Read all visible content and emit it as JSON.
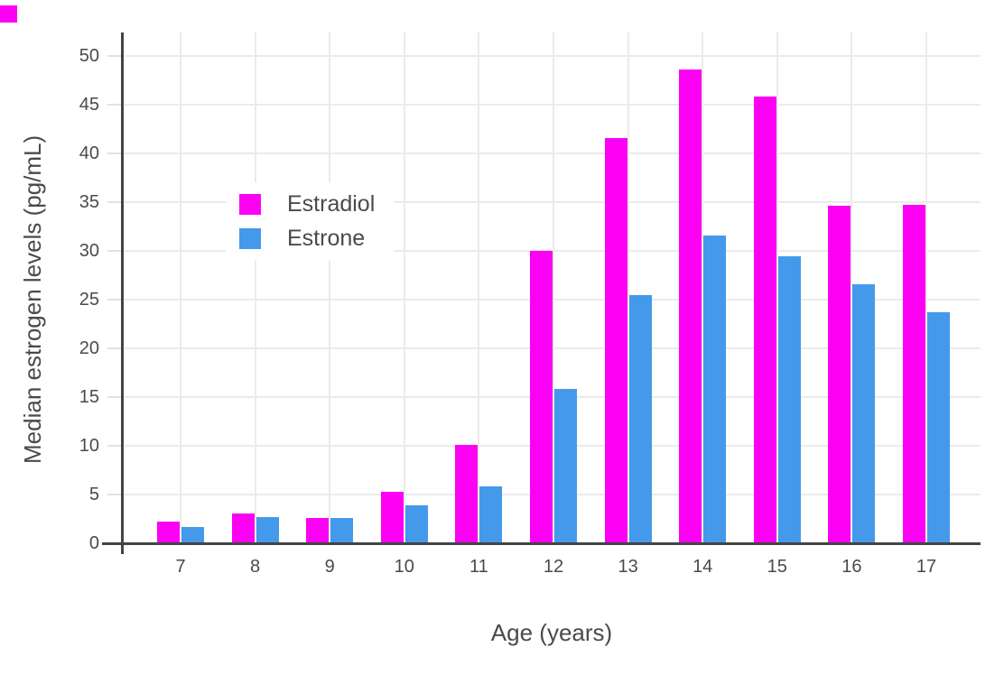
{
  "corner_marker": {
    "color": "#FB00F2"
  },
  "colors": {
    "background": "#FFFFFF",
    "axis_line": "#444444",
    "text": "#4A4A4A",
    "grid": "#EBEBEB",
    "tick": "#E2E2E2"
  },
  "chart_data": {
    "type": "bar",
    "title": "",
    "categories": [
      "7",
      "8",
      "9",
      "10",
      "11",
      "12",
      "13",
      "14",
      "15",
      "16",
      "17"
    ],
    "series": [
      {
        "name": "Estradiol",
        "color": "#FB00F2",
        "values": [
          2.2,
          3.1,
          2.6,
          5.3,
          10.1,
          30.0,
          41.6,
          48.6,
          45.8,
          34.6,
          34.7
        ]
      },
      {
        "name": "Estrone",
        "color": "#4499EB",
        "values": [
          1.7,
          2.7,
          2.6,
          3.9,
          5.8,
          15.8,
          25.5,
          31.6,
          29.4,
          26.6,
          23.7
        ]
      }
    ],
    "xlabel": "Age (years)",
    "ylabel": "Median estrogen levels (pg/mL)",
    "ylim": [
      0,
      50
    ],
    "yticks": [
      0,
      5,
      10,
      15,
      20,
      25,
      30,
      35,
      40,
      45,
      50
    ],
    "grid": true,
    "legend_position": "inside top-left"
  }
}
